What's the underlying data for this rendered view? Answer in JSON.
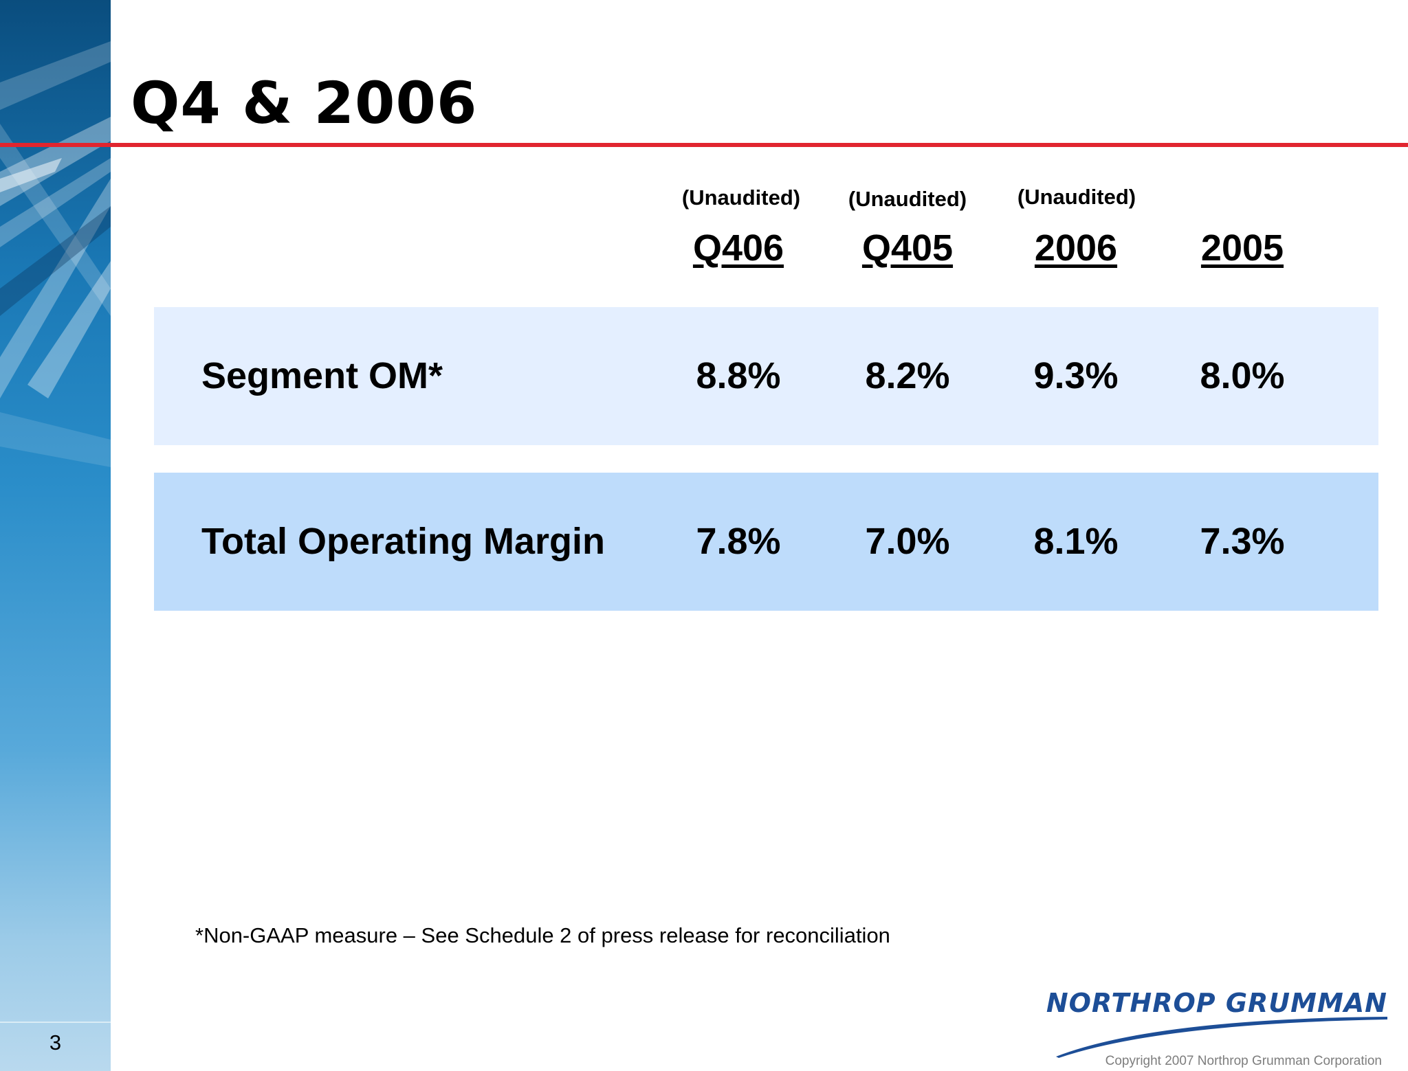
{
  "slide": {
    "title": "Q4 & 2006",
    "page_number": "3"
  },
  "columns": [
    {
      "sub": "(Unaudited)",
      "label": "Q406"
    },
    {
      "sub": "(Unaudited)",
      "label": "Q405"
    },
    {
      "sub": "(Unaudited)",
      "label": "2006"
    },
    {
      "sub": "",
      "label": "2005"
    }
  ],
  "rows": [
    {
      "label": "Segment OM*",
      "values": [
        "8.8%",
        "8.2%",
        "9.3%",
        "8.0%"
      ]
    },
    {
      "label": "Total Operating Margin",
      "values": [
        "7.8%",
        "7.0%",
        "8.1%",
        "7.3%"
      ]
    }
  ],
  "footnote": "*Non-GAAP measure – See Schedule 2 of press release for reconciliation",
  "brand": {
    "logo_text": "NORTHROP GRUMMAN",
    "copyright": "Copyright 2007 Northrop Grumman Corporation",
    "color": "#1d4e97"
  },
  "colors": {
    "accent_rule": "#e1252f",
    "row_band_light": "#e4efff",
    "row_band_dark": "#bedcfb"
  }
}
